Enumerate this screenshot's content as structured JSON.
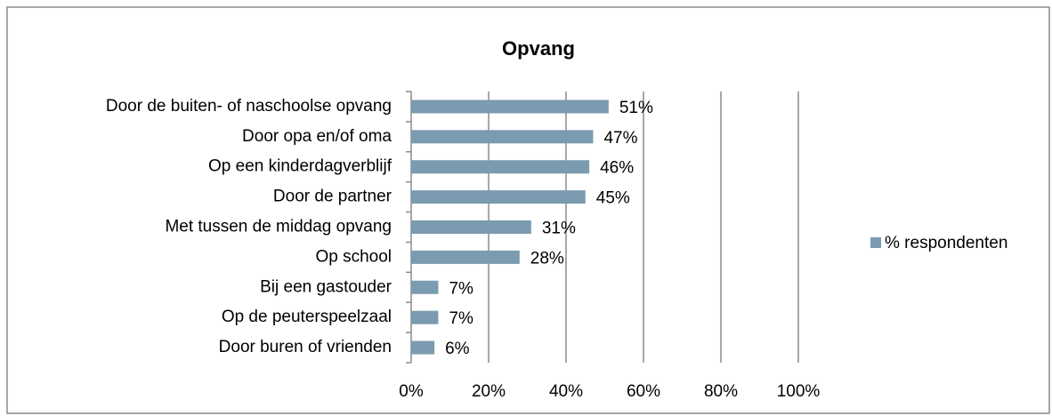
{
  "chart_data": {
    "type": "bar",
    "orientation": "horizontal",
    "title": "Opvang",
    "categories": [
      "Door de buiten- of naschoolse opvang",
      "Door opa en/of oma",
      "Op een kinderdagverblijf",
      "Door de partner",
      "Met tussen de middag opvang",
      "Op school",
      "Bij een gastouder",
      "Op de peuterspeelzaal",
      "Door buren of vrienden"
    ],
    "series": [
      {
        "name": "% respondenten",
        "color": "#7a9bb0",
        "values": [
          51,
          47,
          46,
          45,
          31,
          28,
          7,
          7,
          6
        ],
        "value_labels": [
          "51%",
          "47%",
          "46%",
          "45%",
          "31%",
          "28%",
          "7%",
          "7%",
          "6%"
        ]
      }
    ],
    "xlim": [
      0,
      100
    ],
    "xticks": [
      {
        "value": 0,
        "label": "0%"
      },
      {
        "value": 20,
        "label": "20%"
      },
      {
        "value": 40,
        "label": "40%"
      },
      {
        "value": 60,
        "label": "60%"
      },
      {
        "value": 80,
        "label": "80%"
      },
      {
        "value": 100,
        "label": "100%"
      }
    ],
    "grid": true,
    "legend": "right"
  }
}
